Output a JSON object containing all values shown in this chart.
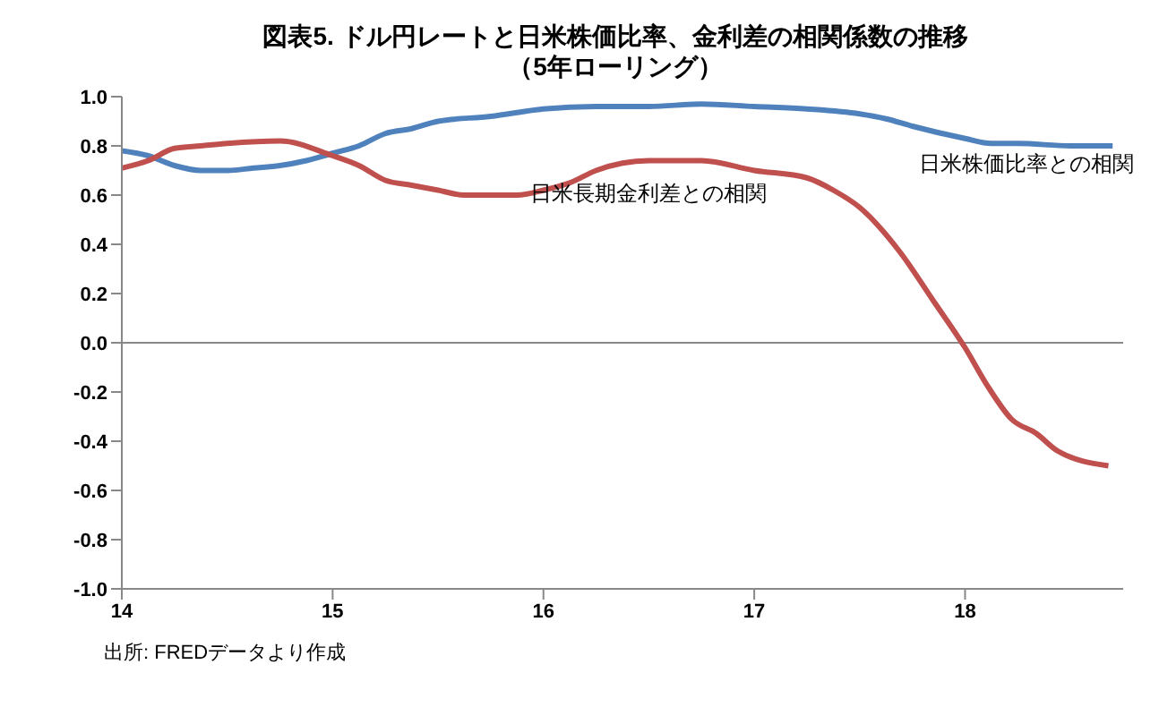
{
  "chart_data": {
    "type": "line",
    "title": "図表5. ドル円レートと日米株価比率、金利差の相関係数の推移",
    "subtitle": "（5年ローリング）",
    "annotations": [
      "出所: FREDデータより作成"
    ],
    "xlim": [
      14,
      18.75
    ],
    "xticks": [
      14,
      15,
      16,
      17,
      18
    ],
    "ylim": [
      -1,
      1
    ],
    "yticks": [
      {
        "value": -1,
        "label": "-1.0"
      },
      {
        "value": -0.8,
        "label": "-0.8"
      },
      {
        "value": -0.6,
        "label": "-0.6"
      },
      {
        "value": -0.4,
        "label": "-0.4"
      },
      {
        "value": -0.2,
        "label": "-0.2"
      },
      {
        "value": 0,
        "label": "0.0"
      },
      {
        "value": 0.2,
        "label": "0.2"
      },
      {
        "value": 0.4,
        "label": "0.4"
      },
      {
        "value": 0.6,
        "label": "0.6"
      },
      {
        "value": 0.8,
        "label": "0.8"
      },
      {
        "value": 1,
        "label": "1.0"
      }
    ],
    "grid": false,
    "marker": "none",
    "line_style": "solid",
    "ref_lines": [
      {
        "axis": "y",
        "value": 0,
        "color": "#888888"
      }
    ],
    "series": [
      {
        "name": "日米株価比率との相関",
        "color": "#4f81bd",
        "x": [
          14,
          14.125,
          14.25,
          14.375,
          14.5,
          14.625,
          14.75,
          14.875,
          15,
          15.125,
          15.25,
          15.375,
          15.5,
          15.75,
          16,
          16.25,
          16.5,
          16.75,
          17,
          17.25,
          17.5,
          17.625,
          17.75,
          18,
          18.125,
          18.25,
          18.5,
          18.7
        ],
        "values": [
          0.78,
          0.76,
          0.72,
          0.7,
          0.7,
          0.71,
          0.72,
          0.74,
          0.77,
          0.8,
          0.85,
          0.87,
          0.9,
          0.92,
          0.95,
          0.96,
          0.96,
          0.97,
          0.96,
          0.95,
          0.93,
          0.91,
          0.88,
          0.83,
          0.81,
          0.81,
          0.8,
          0.8
        ]
      },
      {
        "name": "日米長期金利差との相関",
        "color": "#c0504d",
        "x": [
          14,
          14.125,
          14.25,
          14.375,
          14.5,
          14.75,
          15,
          15.125,
          15.25,
          15.375,
          15.5,
          15.625,
          15.875,
          16,
          16.125,
          16.25,
          16.375,
          16.5,
          16.75,
          17,
          17.25,
          17.375,
          17.5,
          17.69,
          17.85,
          18,
          18.11,
          18.22,
          18.34,
          18.44,
          18.68
        ],
        "values": [
          0.71,
          0.74,
          0.79,
          0.8,
          0.81,
          0.82,
          0.76,
          0.72,
          0.66,
          0.64,
          0.62,
          0.6,
          0.6,
          0.62,
          0.65,
          0.7,
          0.73,
          0.74,
          0.74,
          0.7,
          0.67,
          0.62,
          0.55,
          0.37,
          0.17,
          -0.02,
          -0.18,
          -0.31,
          -0.37,
          -0.44,
          -0.5
        ]
      }
    ]
  }
}
